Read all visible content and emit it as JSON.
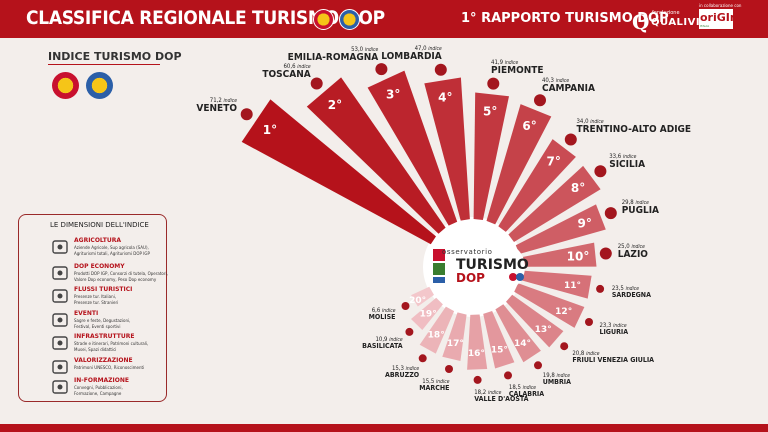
{
  "header": {
    "title": "CLASSIFICA REGIONALE TURISMO DOP",
    "report": "1° RAPPORTO TURISMO DOP",
    "qualivita_small": "fondazione",
    "qualivita_name": "QUALIVITA",
    "origin_top": "in collaborazione con",
    "origin_logo": "oriGIn",
    "origin_sub": "ITALIA"
  },
  "indice": {
    "heading": "INDICE TURISMO DOP"
  },
  "dimensions": {
    "heading": "LE DIMENSIONI DELL'INDICE",
    "items": [
      {
        "title": "AGRICOLTURA",
        "desc": "Aziende Agricole, Sup agricola (SAU),\nAgriturismi totali, Agriturismi DOP IGP",
        "icon": "tractor-icon"
      },
      {
        "title": "DOP ECONOMY",
        "desc": "Prodotti DOP IGP, Consorzi di tutela, Operatori,\nValore Dop economy, Peso Dop economy",
        "icon": "dop-economy-icon"
      },
      {
        "title": "FLUSSI TURISTICI",
        "desc": "Presenze tur. Italiani,\nPresenze tur. Stranieri",
        "icon": "map-icon"
      },
      {
        "title": "EVENTI",
        "desc": "Sagre e feste, Degustazioni,\nFestival, Eventi sportivi",
        "icon": "calendar-icon"
      },
      {
        "title": "INFRASTRUTTURE",
        "desc": "Strade e itinerari, Patrimoni culturali,\nMusei, Spazi didattici",
        "icon": "location-pin-icon"
      },
      {
        "title": "VALORIZZAZIONE",
        "desc": "Patrimoni UNESCO, Riconoscimenti",
        "icon": "ribbon-icon"
      },
      {
        "title": "IN-FORMAZIONE",
        "desc": "Convegni, Pubblicazioni,\nFormazione, Campagne",
        "icon": "people-icon"
      }
    ]
  },
  "logo": {
    "top": "osservatorio",
    "main": "TURISMO",
    "sub": "DOP"
  },
  "value_suffix": "indice",
  "colors": {
    "brand": "#b5121b",
    "bar_dark": "#b5121b",
    "bar_light": "#f3c7cb",
    "background": "#f3eeeb"
  },
  "chart_data": {
    "type": "bar",
    "layout": "radial",
    "categories": [
      "VENETO",
      "TOSCANA",
      "EMILIA-ROMAGNA",
      "LOMBARDIA",
      "PIEMONTE",
      "CAMPANIA",
      "TRENTINO-ALTO ADIGE",
      "SICILIA",
      "PUGLIA",
      "LAZIO",
      "SARDEGNA",
      "LIGURIA",
      "FRIULI VENEZIA GIULIA",
      "UMBRIA",
      "CALABRIA",
      "VALLE D'AOSTA",
      "MARCHE",
      "ABRUZZO",
      "BASILICATA",
      "MOLISE"
    ],
    "ranks": [
      "1°",
      "2°",
      "3°",
      "4°",
      "5°",
      "6°",
      "7°",
      "8°",
      "9°",
      "10°",
      "11°",
      "12°",
      "13°",
      "14°",
      "15°",
      "16°",
      "17°",
      "18°",
      "19°",
      "20°"
    ],
    "values": [
      71.2,
      60.6,
      53.0,
      47.0,
      41.9,
      40.3,
      34.0,
      33.6,
      29.8,
      25.0,
      23.5,
      23.3,
      20.8,
      19.8,
      18.5,
      18.2,
      15.5,
      15.3,
      10.9,
      6.6
    ],
    "value_labels": [
      "71,2",
      "60,6",
      "53,0",
      "47,0",
      "41,9",
      "40,3",
      "34,0",
      "33,6",
      "29,8",
      "25,0",
      "23,5",
      "23,3",
      "20,8",
      "19,8",
      "18,5",
      "18,2",
      "15,5",
      "15,3",
      "10,9",
      "6,6"
    ],
    "title": "CLASSIFICA REGIONALE TURISMO DOP"
  }
}
